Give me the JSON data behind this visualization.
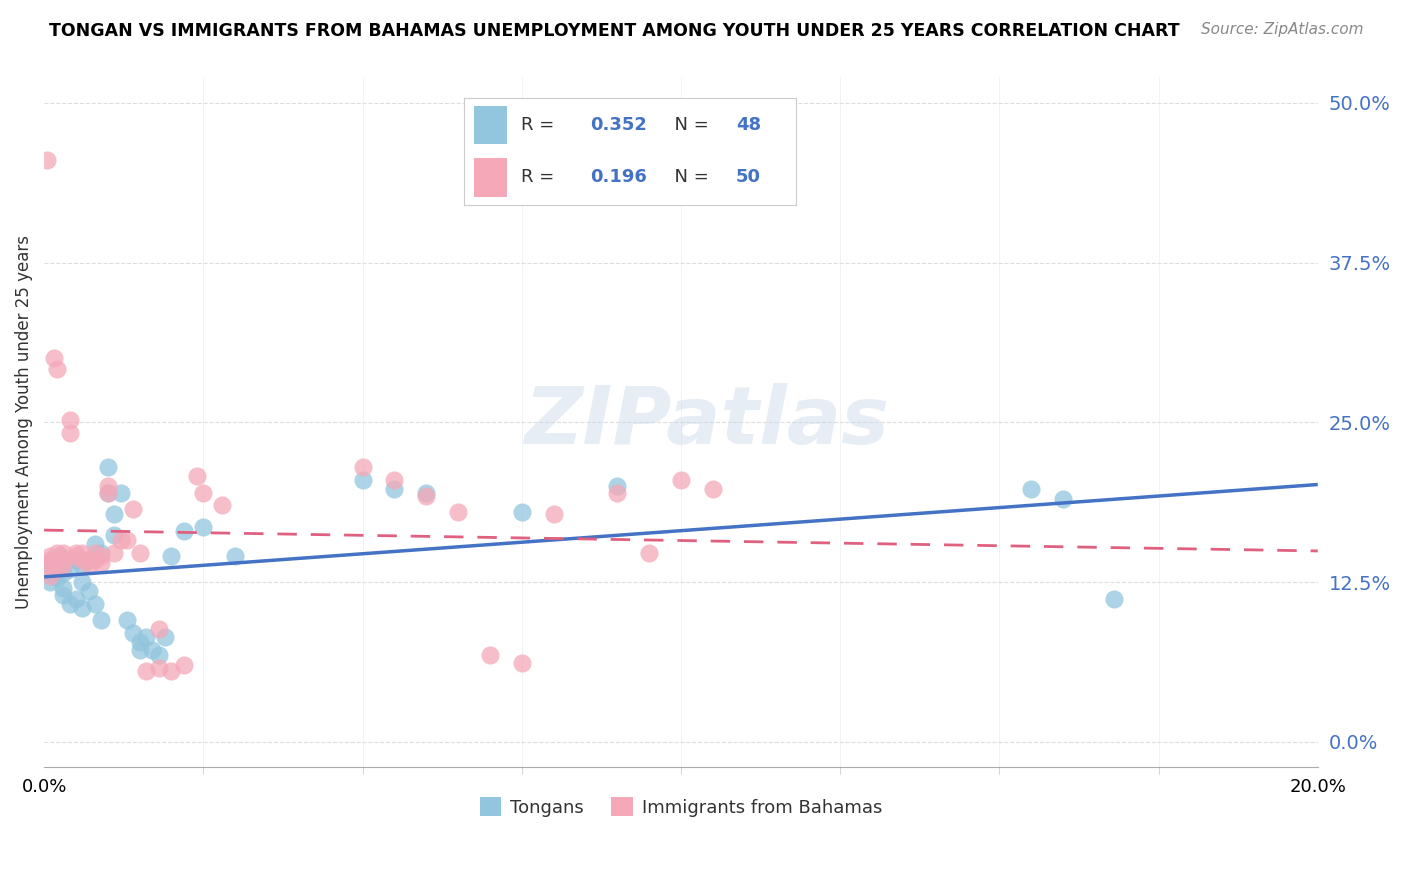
{
  "title": "TONGAN VS IMMIGRANTS FROM BAHAMAS UNEMPLOYMENT AMONG YOUTH UNDER 25 YEARS CORRELATION CHART",
  "source": "Source: ZipAtlas.com",
  "xlabel_blue": "Tongans",
  "xlabel_pink": "Immigrants from Bahamas",
  "ylabel": "Unemployment Among Youth under 25 years",
  "R_blue": 0.352,
  "N_blue": 48,
  "R_pink": 0.196,
  "N_pink": 50,
  "xlim": [
    0.0,
    0.2
  ],
  "ylim": [
    -0.02,
    0.52
  ],
  "blue_color": "#92C5DE",
  "pink_color": "#F4A8B8",
  "blue_line_color": "#4472C4",
  "pink_line_color": "#E06080",
  "watermark": "ZIPatlas",
  "blue_scatter_x": [
    0.0005,
    0.001,
    0.001,
    0.0015,
    0.002,
    0.002,
    0.0025,
    0.003,
    0.003,
    0.003,
    0.004,
    0.004,
    0.005,
    0.005,
    0.006,
    0.006,
    0.006,
    0.007,
    0.007,
    0.008,
    0.008,
    0.009,
    0.009,
    0.01,
    0.01,
    0.011,
    0.011,
    0.012,
    0.013,
    0.014,
    0.015,
    0.015,
    0.016,
    0.017,
    0.018,
    0.019,
    0.02,
    0.022,
    0.025,
    0.03,
    0.05,
    0.055,
    0.06,
    0.075,
    0.09,
    0.155,
    0.16,
    0.168
  ],
  "blue_scatter_y": [
    0.138,
    0.132,
    0.125,
    0.142,
    0.138,
    0.128,
    0.145,
    0.132,
    0.12,
    0.115,
    0.135,
    0.108,
    0.142,
    0.112,
    0.138,
    0.125,
    0.105,
    0.142,
    0.118,
    0.155,
    0.108,
    0.148,
    0.095,
    0.195,
    0.215,
    0.162,
    0.178,
    0.195,
    0.095,
    0.085,
    0.078,
    0.072,
    0.082,
    0.072,
    0.068,
    0.082,
    0.145,
    0.165,
    0.168,
    0.145,
    0.205,
    0.198,
    0.195,
    0.18,
    0.2,
    0.198,
    0.19,
    0.112
  ],
  "pink_scatter_x": [
    0.0004,
    0.0005,
    0.001,
    0.001,
    0.001,
    0.0015,
    0.002,
    0.002,
    0.002,
    0.003,
    0.003,
    0.003,
    0.004,
    0.004,
    0.005,
    0.005,
    0.006,
    0.006,
    0.007,
    0.007,
    0.008,
    0.008,
    0.009,
    0.009,
    0.01,
    0.01,
    0.011,
    0.012,
    0.013,
    0.014,
    0.015,
    0.016,
    0.018,
    0.02,
    0.022,
    0.024,
    0.025,
    0.028,
    0.05,
    0.055,
    0.06,
    0.065,
    0.07,
    0.075,
    0.08,
    0.09,
    0.095,
    0.1,
    0.105,
    0.018
  ],
  "pink_scatter_y": [
    0.455,
    0.138,
    0.145,
    0.142,
    0.13,
    0.3,
    0.292,
    0.148,
    0.135,
    0.142,
    0.138,
    0.148,
    0.252,
    0.242,
    0.148,
    0.145,
    0.148,
    0.142,
    0.142,
    0.138,
    0.148,
    0.142,
    0.14,
    0.145,
    0.2,
    0.195,
    0.148,
    0.158,
    0.158,
    0.182,
    0.148,
    0.055,
    0.058,
    0.055,
    0.06,
    0.208,
    0.195,
    0.185,
    0.215,
    0.205,
    0.192,
    0.18,
    0.068,
    0.062,
    0.178,
    0.195,
    0.148,
    0.205,
    0.198,
    0.088
  ]
}
